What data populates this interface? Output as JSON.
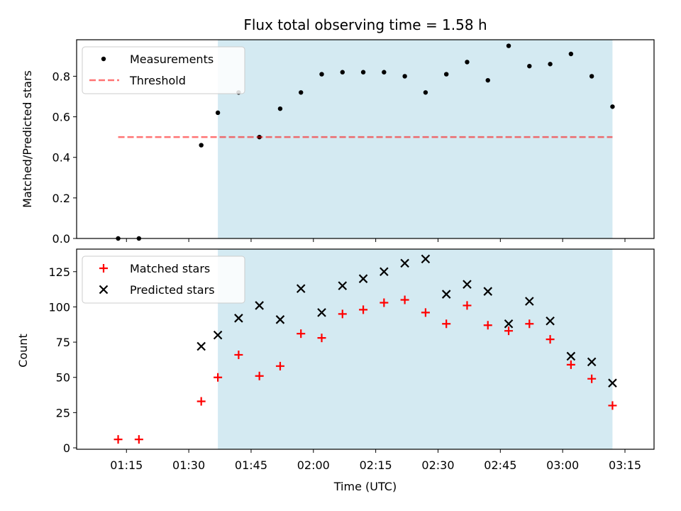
{
  "title": "Flux total observing time = 1.58 h",
  "colors": {
    "shade": "#add8e6",
    "measurement": "#000000",
    "threshold": "#ff0000",
    "matched": "#ff0000",
    "predicted": "#000000"
  },
  "chart_data": [
    {
      "type": "scatter",
      "ylabel": "Matched/Predicted stars",
      "xlim": [
        "01:03",
        "03:22"
      ],
      "ylim": [
        0,
        0.98
      ],
      "yticks": [
        0.0,
        0.2,
        0.4,
        0.6,
        0.8
      ],
      "ytick_labels": [
        "0.0",
        "0.2",
        "0.4",
        "0.6",
        "0.8"
      ],
      "shaded_range": [
        "01:37",
        "03:12"
      ],
      "legend": {
        "placement": "upper-left",
        "entries": [
          "Measurements",
          "Threshold"
        ]
      },
      "series": [
        {
          "name": "Measurements",
          "marker": "dot",
          "x": [
            "01:13",
            "01:18",
            "01:33",
            "01:37",
            "01:42",
            "01:47",
            "01:52",
            "01:57",
            "02:02",
            "02:07",
            "02:12",
            "02:17",
            "02:22",
            "02:27",
            "02:32",
            "02:37",
            "02:42",
            "02:47",
            "02:52",
            "02:57",
            "03:02",
            "03:07",
            "03:12"
          ],
          "y": [
            0.0,
            0.0,
            0.46,
            0.62,
            0.72,
            0.5,
            0.64,
            0.72,
            0.81,
            0.82,
            0.82,
            0.82,
            0.8,
            0.72,
            0.81,
            0.87,
            0.78,
            0.95,
            0.85,
            0.86,
            0.91,
            0.8,
            0.65
          ]
        },
        {
          "name": "Threshold",
          "style": "dashed-line",
          "x": [
            "01:13",
            "03:12"
          ],
          "y": [
            0.5,
            0.5
          ]
        }
      ]
    },
    {
      "type": "scatter",
      "xlabel": "Time (UTC)",
      "ylabel": "Count",
      "xlim": [
        "01:03",
        "03:22"
      ],
      "ylim": [
        -1,
        141
      ],
      "yticks": [
        0,
        25,
        50,
        75,
        100,
        125
      ],
      "ytick_labels": [
        "0",
        "25",
        "50",
        "75",
        "100",
        "125"
      ],
      "xticks": [
        "01:15",
        "01:30",
        "01:45",
        "02:00",
        "02:15",
        "02:30",
        "02:45",
        "03:00",
        "03:15"
      ],
      "shaded_range": [
        "01:37",
        "03:12"
      ],
      "legend": {
        "placement": "upper-left",
        "entries": [
          "Matched stars",
          "Predicted stars"
        ]
      },
      "series": [
        {
          "name": "Matched stars",
          "marker": "plus",
          "x": [
            "01:13",
            "01:18",
            "01:33",
            "01:37",
            "01:42",
            "01:47",
            "01:52",
            "01:57",
            "02:02",
            "02:07",
            "02:12",
            "02:17",
            "02:22",
            "02:27",
            "02:32",
            "02:37",
            "02:42",
            "02:47",
            "02:52",
            "02:57",
            "03:02",
            "03:07",
            "03:12"
          ],
          "y": [
            6,
            6,
            33,
            50,
            66,
            51,
            58,
            81,
            78,
            95,
            98,
            103,
            105,
            96,
            88,
            101,
            87,
            83,
            88,
            77,
            59,
            49,
            30
          ]
        },
        {
          "name": "Predicted stars",
          "marker": "x",
          "x": [
            "01:33",
            "01:37",
            "01:42",
            "01:47",
            "01:52",
            "01:57",
            "02:02",
            "02:07",
            "02:12",
            "02:17",
            "02:22",
            "02:27",
            "02:32",
            "02:37",
            "02:42",
            "02:47",
            "02:52",
            "02:57",
            "03:02",
            "03:07",
            "03:12"
          ],
          "y": [
            72,
            80,
            92,
            101,
            91,
            113,
            96,
            115,
            120,
            125,
            131,
            134,
            109,
            116,
            111,
            88,
            104,
            90,
            65,
            61,
            46
          ]
        }
      ]
    }
  ]
}
